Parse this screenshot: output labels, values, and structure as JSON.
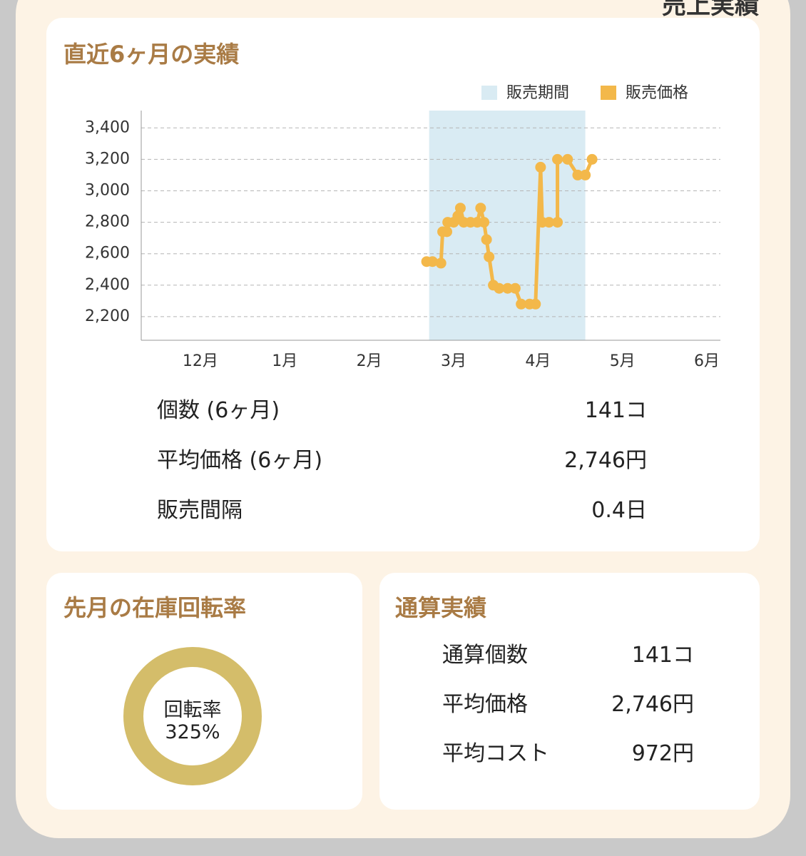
{
  "header": {
    "title": "売上実績"
  },
  "chart_data": {
    "type": "line",
    "title": "直近6ヶ月の実績",
    "x": [
      2.68,
      2.75,
      2.85,
      2.87,
      2.92,
      2.93,
      3.0,
      3.05,
      3.08,
      3.12,
      3.2,
      3.28,
      3.32,
      3.36,
      3.39,
      3.42,
      3.47,
      3.54,
      3.64,
      3.73,
      3.8,
      3.9,
      3.97,
      4.03,
      4.05,
      4.13,
      4.23,
      4.23,
      4.35,
      4.47,
      4.56,
      4.64
    ],
    "series": [
      {
        "name": "販売価格",
        "color": "#f3b84a",
        "values": [
          2550,
          2550,
          2540,
          2740,
          2740,
          2800,
          2800,
          2840,
          2890,
          2800,
          2800,
          2800,
          2890,
          2800,
          2690,
          2580,
          2400,
          2380,
          2380,
          2380,
          2280,
          2280,
          2280,
          3150,
          2800,
          2800,
          2800,
          3200,
          3200,
          3100,
          3100,
          3200
        ]
      }
    ],
    "highlight": {
      "name": "販売期間",
      "color": "#d9ebf3",
      "range": [
        2.71,
        4.56
      ]
    },
    "xlim": [
      -0.7,
      6.16
    ],
    "xticks": [
      {
        "value": 0,
        "label": "12月"
      },
      {
        "value": 1,
        "label": "1月"
      },
      {
        "value": 2,
        "label": "2月"
      },
      {
        "value": 3,
        "label": "3月"
      },
      {
        "value": 4,
        "label": "4月"
      },
      {
        "value": 5,
        "label": "5月"
      },
      {
        "value": 6,
        "label": "6月"
      }
    ],
    "ylim": [
      2050,
      3510
    ],
    "yticks": [
      {
        "value": 2200,
        "label": "2,200"
      },
      {
        "value": 2400,
        "label": "2,400"
      },
      {
        "value": 2600,
        "label": "2,600"
      },
      {
        "value": 2800,
        "label": "2,800"
      },
      {
        "value": 3000,
        "label": "3,000"
      },
      {
        "value": 3200,
        "label": "3,200"
      },
      {
        "value": 3400,
        "label": "3,400"
      }
    ],
    "grid": true
  },
  "stats": {
    "rows": [
      [
        "個数 (6ヶ月)",
        "141コ"
      ],
      [
        "平均価格 (6ヶ月)",
        "2,746円"
      ],
      [
        "販売間隔",
        "0.4日"
      ]
    ]
  },
  "turnover": {
    "title": "先月の在庫回転率",
    "label": "回転率",
    "value": "325%"
  },
  "totals": {
    "title": "通算実績",
    "rows": [
      [
        "通算個数",
        "141コ"
      ],
      [
        "平均価格",
        "2,746円"
      ],
      [
        "平均コスト",
        "972円"
      ]
    ]
  }
}
